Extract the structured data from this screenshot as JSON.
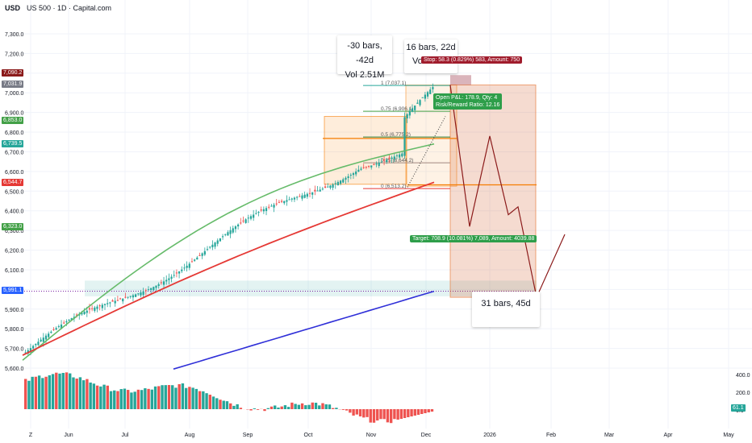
{
  "header": {
    "currency": "USD",
    "title": "US 500 · 1D · Capital.com"
  },
  "chart_data": {
    "type": "candlestick",
    "x_ticks": [
      "Z",
      "Jun",
      "Jul",
      "Aug",
      "Sep",
      "Oct",
      "Nov",
      "Dec",
      "2026",
      "Feb",
      "Mar",
      "Apr",
      "May"
    ],
    "y_ticks": [
      "7,300.0",
      "7,200.0",
      "7,100.0",
      "7,000.0",
      "6,900.0",
      "6,800.0",
      "6,700.0",
      "6,600.0",
      "6,500.0",
      "6,400.0",
      "6,300.0",
      "6,200.0",
      "6,100.0",
      "6,000.0",
      "5,900.0",
      "5,800.0",
      "5,700.0",
      "5,600.0"
    ],
    "volume_ticks": [
      "400.0",
      "200.0",
      "0.0"
    ],
    "volume_last": "61.1",
    "price_tags": [
      {
        "label": "7,090.2",
        "color": "#8b1a1a"
      },
      {
        "label": "7,031.9",
        "color": "#787b86"
      },
      {
        "label": "6,853.0",
        "color": "#43a047"
      },
      {
        "label": "6,739.5",
        "color": "#26a69a"
      },
      {
        "label": "6,544.7",
        "color": "#e53935"
      },
      {
        "label": "6,323.0",
        "color": "#43a047"
      },
      {
        "label": "5,991.1",
        "color": "#2962ff"
      }
    ],
    "moving_averages": [
      {
        "color": "#66bb6a"
      },
      {
        "color": "#e53935"
      },
      {
        "color": "#2f2fd8"
      }
    ],
    "fib_levels": [
      {
        "label": "1 (7,037.1)",
        "value": 7037.1
      },
      {
        "label": "0.75 (6,906.1)",
        "value": 6906.1
      },
      {
        "label": "0.5 (6,775.2)",
        "value": 6775.2
      },
      {
        "label": "0.25 (6,644.2)",
        "value": 6644.2
      },
      {
        "label": "0 (6,513.2)",
        "value": 6513.2
      }
    ],
    "support_zone": [
      5965,
      6045
    ],
    "projection_path": [
      [
        "Dec 10",
        7040
      ],
      [
        "Dec 22",
        6320
      ],
      [
        "Jan 5",
        6780
      ],
      [
        "Jan 12",
        6380
      ],
      [
        "Jan 18",
        6420
      ],
      [
        "Jan 27",
        5960
      ],
      [
        "Feb 4",
        6280
      ]
    ],
    "annotations": {
      "range1_bars": "-30 bars, -42d",
      "range1_vol": "Vol 2.51M",
      "range2_bars": "16 bars, 22d",
      "range2_vol": "Vo",
      "range3_bars": "31 bars, 45d",
      "stop": "Stop: 58.3 (0.829%) 583, Amount: 750",
      "pnl_1": "Open P&L: 178.9, Qty: 4",
      "pnl_2": "Risk/Reward Ratio: 12.16",
      "target": "Target: 708.9 (10.081%) 7,089, Amount: 4039.88"
    }
  }
}
